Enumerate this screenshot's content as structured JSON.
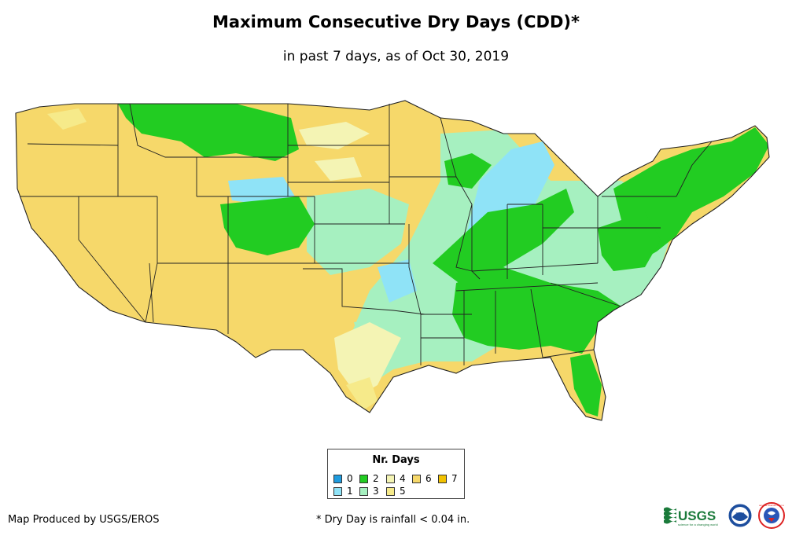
{
  "header": {
    "title": "Maximum Consecutive Dry Days (CDD)*",
    "subtitle": "in past 7 days, as of Oct 30, 2019"
  },
  "legend": {
    "title": "Nr. Days",
    "items": [
      {
        "label": "0",
        "color": "#1f9bde"
      },
      {
        "label": "1",
        "color": "#8fe3f7"
      },
      {
        "label": "2",
        "color": "#22cc22"
      },
      {
        "label": "3",
        "color": "#a6f0c0"
      },
      {
        "label": "4",
        "color": "#f4f4b4"
      },
      {
        "label": "5",
        "color": "#f6ea8a"
      },
      {
        "label": "6",
        "color": "#f6d86a"
      },
      {
        "label": "7",
        "color": "#f2c200"
      }
    ]
  },
  "footer": {
    "credit": "Map Produced by USGS/EROS",
    "footnote": "* Dry Day is rainfall < 0.04 in."
  },
  "logos": [
    {
      "name": "usgs-logo",
      "text": "USGS",
      "tagline": "science for a changing world"
    },
    {
      "name": "noaa-logo",
      "text": "noaa"
    },
    {
      "name": "nws-logo",
      "text": "NATIONAL WEATHER SERVICE"
    }
  ],
  "colors": {
    "state_border": "#222222",
    "background": "#ffffff"
  }
}
